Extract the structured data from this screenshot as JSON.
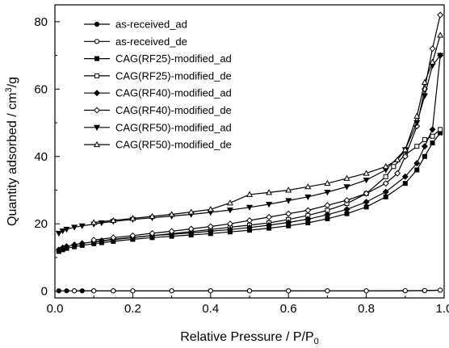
{
  "chart_data": {
    "type": "line",
    "title": "",
    "xlabel": "Relative Pressure / P/P",
    "xlabel_sub": "0",
    "ylabel": "Quantity adsorbed / cm",
    "ylabel_sup": "3",
    "ylabel_suffix": "/g",
    "xlim": [
      0.0,
      1.0
    ],
    "ylim": [
      -2,
      85
    ],
    "xticks": [
      "0.0",
      "0.2",
      "0.4",
      "0.6",
      "0.8",
      "1.0"
    ],
    "yticks": [
      "0",
      "20",
      "40",
      "60",
      "80"
    ],
    "grid": false,
    "legend_position": "top-left",
    "series": [
      {
        "name": "as-received_ad",
        "marker": "circle",
        "fill": "filled",
        "x": [
          0.01,
          0.03,
          0.05,
          0.07,
          0.1,
          0.15,
          0.2,
          0.3,
          0.4,
          0.5,
          0.6,
          0.7,
          0.8,
          0.9,
          0.95,
          0.99
        ],
        "y": [
          0.1,
          0.1,
          0.1,
          0.1,
          0.1,
          0.1,
          0.1,
          0.1,
          0.1,
          0.1,
          0.1,
          0.1,
          0.1,
          0.1,
          0.15,
          0.3
        ]
      },
      {
        "name": "as-received_de",
        "marker": "circle",
        "fill": "open",
        "x": [
          0.99,
          0.95,
          0.9,
          0.8,
          0.7,
          0.6,
          0.5,
          0.4,
          0.3,
          0.2,
          0.15,
          0.1,
          0.05
        ],
        "y": [
          0.3,
          0.2,
          0.15,
          0.1,
          0.1,
          0.1,
          0.1,
          0.1,
          0.1,
          0.1,
          0.1,
          0.1,
          0.1
        ]
      },
      {
        "name": "CAG(RF25)-modified_ad",
        "marker": "square",
        "fill": "filled",
        "x": [
          0.01,
          0.02,
          0.03,
          0.05,
          0.07,
          0.1,
          0.12,
          0.15,
          0.2,
          0.25,
          0.3,
          0.35,
          0.4,
          0.45,
          0.5,
          0.55,
          0.6,
          0.65,
          0.7,
          0.75,
          0.8,
          0.85,
          0.9,
          0.93,
          0.95,
          0.97,
          0.99
        ],
        "y": [
          11.8,
          12.3,
          12.7,
          13.2,
          13.6,
          14.1,
          14.4,
          14.8,
          15.4,
          15.9,
          16.3,
          16.7,
          17.1,
          17.6,
          18.1,
          18.7,
          19.4,
          20.3,
          21.5,
          23.0,
          25.0,
          28.0,
          32.0,
          36.0,
          40.0,
          44.0,
          47.0
        ]
      },
      {
        "name": "CAG(RF25)-modified_de",
        "marker": "square",
        "fill": "open",
        "x": [
          0.99,
          0.97,
          0.95,
          0.93,
          0.9,
          0.87,
          0.85,
          0.8,
          0.75,
          0.7,
          0.65,
          0.6,
          0.55,
          0.5,
          0.45,
          0.4,
          0.35,
          0.3,
          0.25,
          0.2,
          0.15,
          0.1
        ],
        "y": [
          48.0,
          46.0,
          45.0,
          43.0,
          40.5,
          37.0,
          34.0,
          29.0,
          26.0,
          24.0,
          22.5,
          21.3,
          20.3,
          19.6,
          19.0,
          18.3,
          17.7,
          17.1,
          16.5,
          15.9,
          15.3,
          14.6
        ]
      },
      {
        "name": "CAG(RF40)-modified_ad",
        "marker": "diamond",
        "fill": "filled",
        "x": [
          0.01,
          0.02,
          0.03,
          0.05,
          0.07,
          0.1,
          0.12,
          0.15,
          0.2,
          0.25,
          0.3,
          0.35,
          0.4,
          0.45,
          0.5,
          0.55,
          0.6,
          0.65,
          0.7,
          0.75,
          0.8,
          0.85,
          0.9,
          0.93,
          0.95,
          0.97,
          0.99
        ],
        "y": [
          12.3,
          12.9,
          13.3,
          13.8,
          14.2,
          14.7,
          15.0,
          15.4,
          16.0,
          16.5,
          16.9,
          17.3,
          17.8,
          18.3,
          18.9,
          19.6,
          20.4,
          21.4,
          22.7,
          24.3,
          26.5,
          29.5,
          34.0,
          38.0,
          43.0,
          48.0,
          70.0
        ]
      },
      {
        "name": "CAG(RF40)-modified_de",
        "marker": "diamond",
        "fill": "open",
        "x": [
          0.99,
          0.97,
          0.95,
          0.93,
          0.9,
          0.88,
          0.85,
          0.8,
          0.75,
          0.7,
          0.65,
          0.6,
          0.55,
          0.5,
          0.45,
          0.4,
          0.35,
          0.3,
          0.25,
          0.2,
          0.15,
          0.1
        ],
        "y": [
          82.0,
          72.0,
          60.0,
          49.0,
          40.0,
          35.0,
          32.0,
          29.0,
          27.0,
          25.5,
          24.0,
          23.0,
          22.0,
          21.0,
          20.0,
          19.2,
          18.5,
          17.8,
          17.2,
          16.5,
          15.9,
          15.2
        ]
      },
      {
        "name": "CAG(RF50)-modified_ad",
        "marker": "triangle-down",
        "fill": "filled",
        "x": [
          0.01,
          0.02,
          0.03,
          0.05,
          0.07,
          0.1,
          0.12,
          0.15,
          0.2,
          0.25,
          0.3,
          0.35,
          0.4,
          0.45,
          0.5,
          0.55,
          0.6,
          0.65,
          0.7,
          0.75,
          0.8,
          0.85,
          0.9,
          0.93,
          0.95,
          0.97,
          0.99
        ],
        "y": [
          17.2,
          17.9,
          18.4,
          19.0,
          19.4,
          19.9,
          20.3,
          20.7,
          21.3,
          21.8,
          22.3,
          22.8,
          23.4,
          24.1,
          24.9,
          25.8,
          26.9,
          28.0,
          29.4,
          31.0,
          33.0,
          36.0,
          42.0,
          50.0,
          58.0,
          67.0,
          70.0
        ]
      },
      {
        "name": "CAG(RF50)-modified_de",
        "marker": "triangle-up",
        "fill": "open",
        "x": [
          0.99,
          0.97,
          0.95,
          0.93,
          0.9,
          0.88,
          0.85,
          0.8,
          0.75,
          0.7,
          0.65,
          0.6,
          0.55,
          0.5,
          0.45,
          0.4,
          0.35,
          0.3,
          0.25,
          0.2,
          0.15,
          0.1
        ],
        "y": [
          76.0,
          68.0,
          62.0,
          52.0,
          42.0,
          39.0,
          37.0,
          35.0,
          33.5,
          32.0,
          31.0,
          30.0,
          29.3,
          28.7,
          26.2,
          24.3,
          23.5,
          22.8,
          22.2,
          21.6,
          21.0,
          20.4
        ]
      }
    ]
  }
}
